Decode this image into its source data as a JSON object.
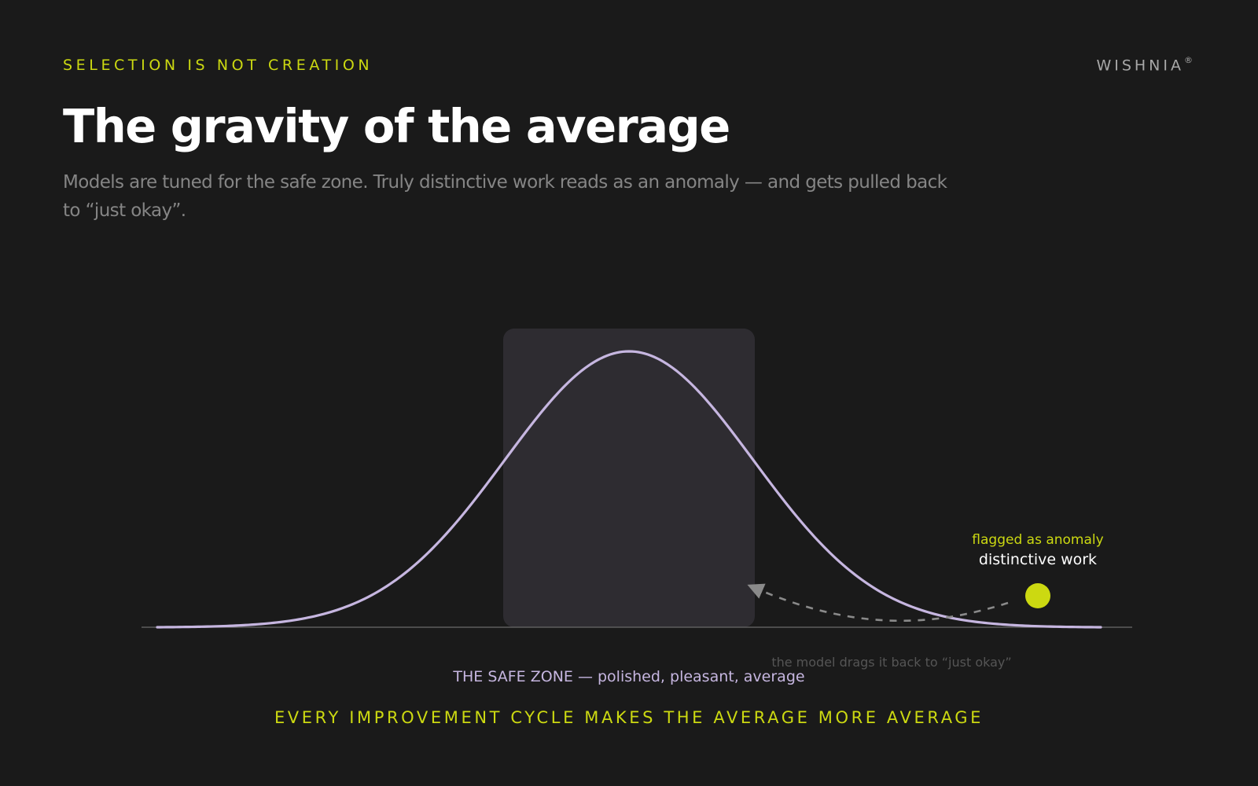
{
  "header": {
    "eyebrow": "SELECTION IS NOT CREATION",
    "brand": "WISHNIA",
    "brand_mark": "®",
    "title": "The gravity of the average",
    "subtitle": "Models are tuned for the safe zone. Truly distinctive work reads as an anomaly — and gets pulled back to “just okay”."
  },
  "diagram": {
    "anomaly_label": "flagged as anomaly",
    "point_label": "distinctive work",
    "drag_label": "the model drags it back to “just okay”",
    "safe_zone_label": "THE SAFE ZONE — polished, pleasant, average"
  },
  "footer": {
    "tagline": "EVERY IMPROVEMENT CYCLE MAKES THE AVERAGE MORE AVERAGE"
  },
  "colors": {
    "background": "#1a1a1a",
    "accent": "#ccd911",
    "curve": "#c6b6e0",
    "safe_zone": "#2e2c31",
    "muted": "#858585"
  }
}
